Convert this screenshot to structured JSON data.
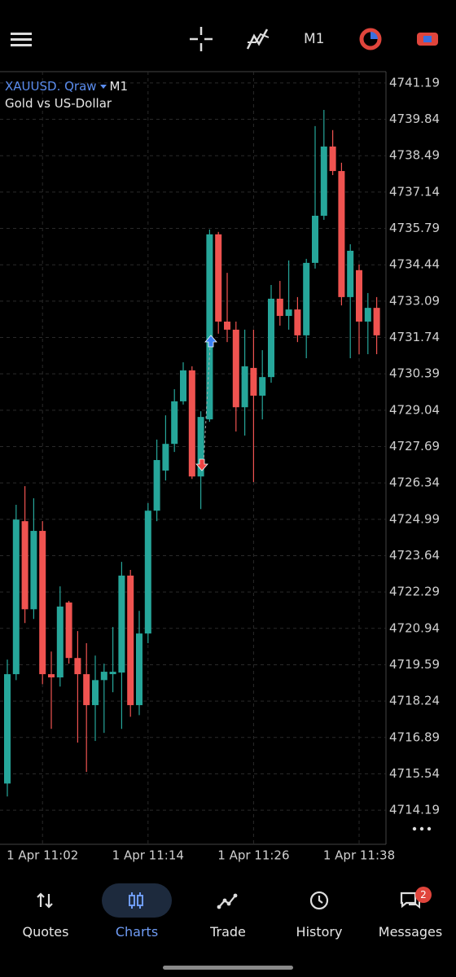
{
  "header": {
    "timeframe": "M1"
  },
  "chart_data": {
    "type": "candlestick",
    "symbol": "XAUUSD. Qraw",
    "symbol_timeframe": "M1",
    "description": "Gold vs US-Dollar",
    "categories": [
      null,
      null,
      null,
      null,
      "1 Apr 11:02",
      null,
      null,
      null,
      null,
      null,
      null,
      null,
      null,
      null,
      null,
      null,
      "1 Apr 11:14",
      null,
      null,
      null,
      null,
      null,
      null,
      null,
      null,
      null,
      null,
      null,
      "1 Apr 11:26",
      null,
      null,
      null,
      null,
      null,
      null,
      null,
      null,
      null,
      null,
      null,
      "1 Apr 11:38",
      null,
      null
    ],
    "open": [
      4715.18,
      4719.24,
      4724.92,
      4721.65,
      4724.56,
      4719.24,
      4719.12,
      4721.9,
      4719.84,
      4719.24,
      4718.09,
      4719.02,
      4719.24,
      4719.3,
      4722.9,
      4718.09,
      4720.75,
      4725.31,
      4726.8,
      4727.79,
      4729.37,
      4730.52,
      4726.58,
      4728.7,
      4735.57,
      4732.33,
      4732.03,
      4729.15,
      4730.61,
      4729.58,
      4730.27,
      4733.18,
      4732.54,
      4732.78,
      4731.82,
      4734.51,
      4736.26,
      4738.83,
      4737.92,
      4733.24,
      4734.24,
      4732.33,
      4732.84
    ],
    "high": [
      4719.78,
      4725.53,
      4726.22,
      4725.77,
      4724.92,
      4720.08,
      4722.5,
      4721.96,
      4720.84,
      4720.39,
      4719.93,
      4719.63,
      4720.99,
      4723.41,
      4723.11,
      4721.59,
      4725.59,
      4727.95,
      4728.85,
      4729.82,
      4730.82,
      4730.67,
      4729.0,
      4735.75,
      4735.66,
      4734.14,
      4732.33,
      4732.03,
      4732.03,
      4731.27,
      4733.69,
      4733.84,
      4734.6,
      4733.24,
      4734.66,
      4739.59,
      4740.19,
      4739.44,
      4738.23,
      4735.2,
      4734.45,
      4733.39,
      4733.24
    ],
    "low": [
      4714.7,
      4719.02,
      4721.14,
      4721.29,
      4718.87,
      4717.21,
      4718.78,
      4719.63,
      4716.7,
      4715.61,
      4716.76,
      4717.06,
      4718.57,
      4717.21,
      4717.66,
      4717.72,
      4720.39,
      4724.92,
      4726.43,
      4727.49,
      4729.25,
      4726.49,
      4725.37,
      4728.61,
      4731.88,
      4731.57,
      4728.25,
      4728.1,
      4726.37,
      4728.7,
      4730.06,
      4732.18,
      4732.03,
      4731.57,
      4730.97,
      4734.3,
      4736.11,
      4737.77,
      4732.93,
      4730.97,
      4731.12,
      4731.12,
      4731.12
    ],
    "close": [
      4719.24,
      4724.98,
      4721.65,
      4724.56,
      4719.24,
      4719.12,
      4721.75,
      4719.84,
      4719.24,
      4718.09,
      4719.02,
      4719.33,
      4719.33,
      4722.9,
      4718.09,
      4720.75,
      4725.31,
      4727.19,
      4727.79,
      4729.37,
      4730.52,
      4726.58,
      4728.79,
      4735.57,
      4732.33,
      4732.03,
      4729.15,
      4730.67,
      4729.58,
      4730.27,
      4733.18,
      4732.54,
      4732.78,
      4731.82,
      4734.51,
      4736.26,
      4738.83,
      4737.92,
      4733.24,
      4734.96,
      4732.33,
      4732.84,
      4731.82
    ],
    "up_color": "#26a69a",
    "down_color": "#ef5350",
    "ylim": [
      4713.74,
      4741.61
    ],
    "yticks": [
      4741.19,
      4739.84,
      4738.49,
      4737.14,
      4735.79,
      4734.44,
      4733.09,
      4731.74,
      4730.39,
      4729.04,
      4727.69,
      4726.34,
      4724.99,
      4723.64,
      4722.29,
      4720.94,
      4719.59,
      4718.24,
      4716.89,
      4715.54,
      4714.19
    ],
    "grid": true
  },
  "nav": {
    "items": [
      "Quotes",
      "Charts",
      "Trade",
      "History",
      "Messages"
    ],
    "active": "Charts",
    "messages_badge": 2
  }
}
